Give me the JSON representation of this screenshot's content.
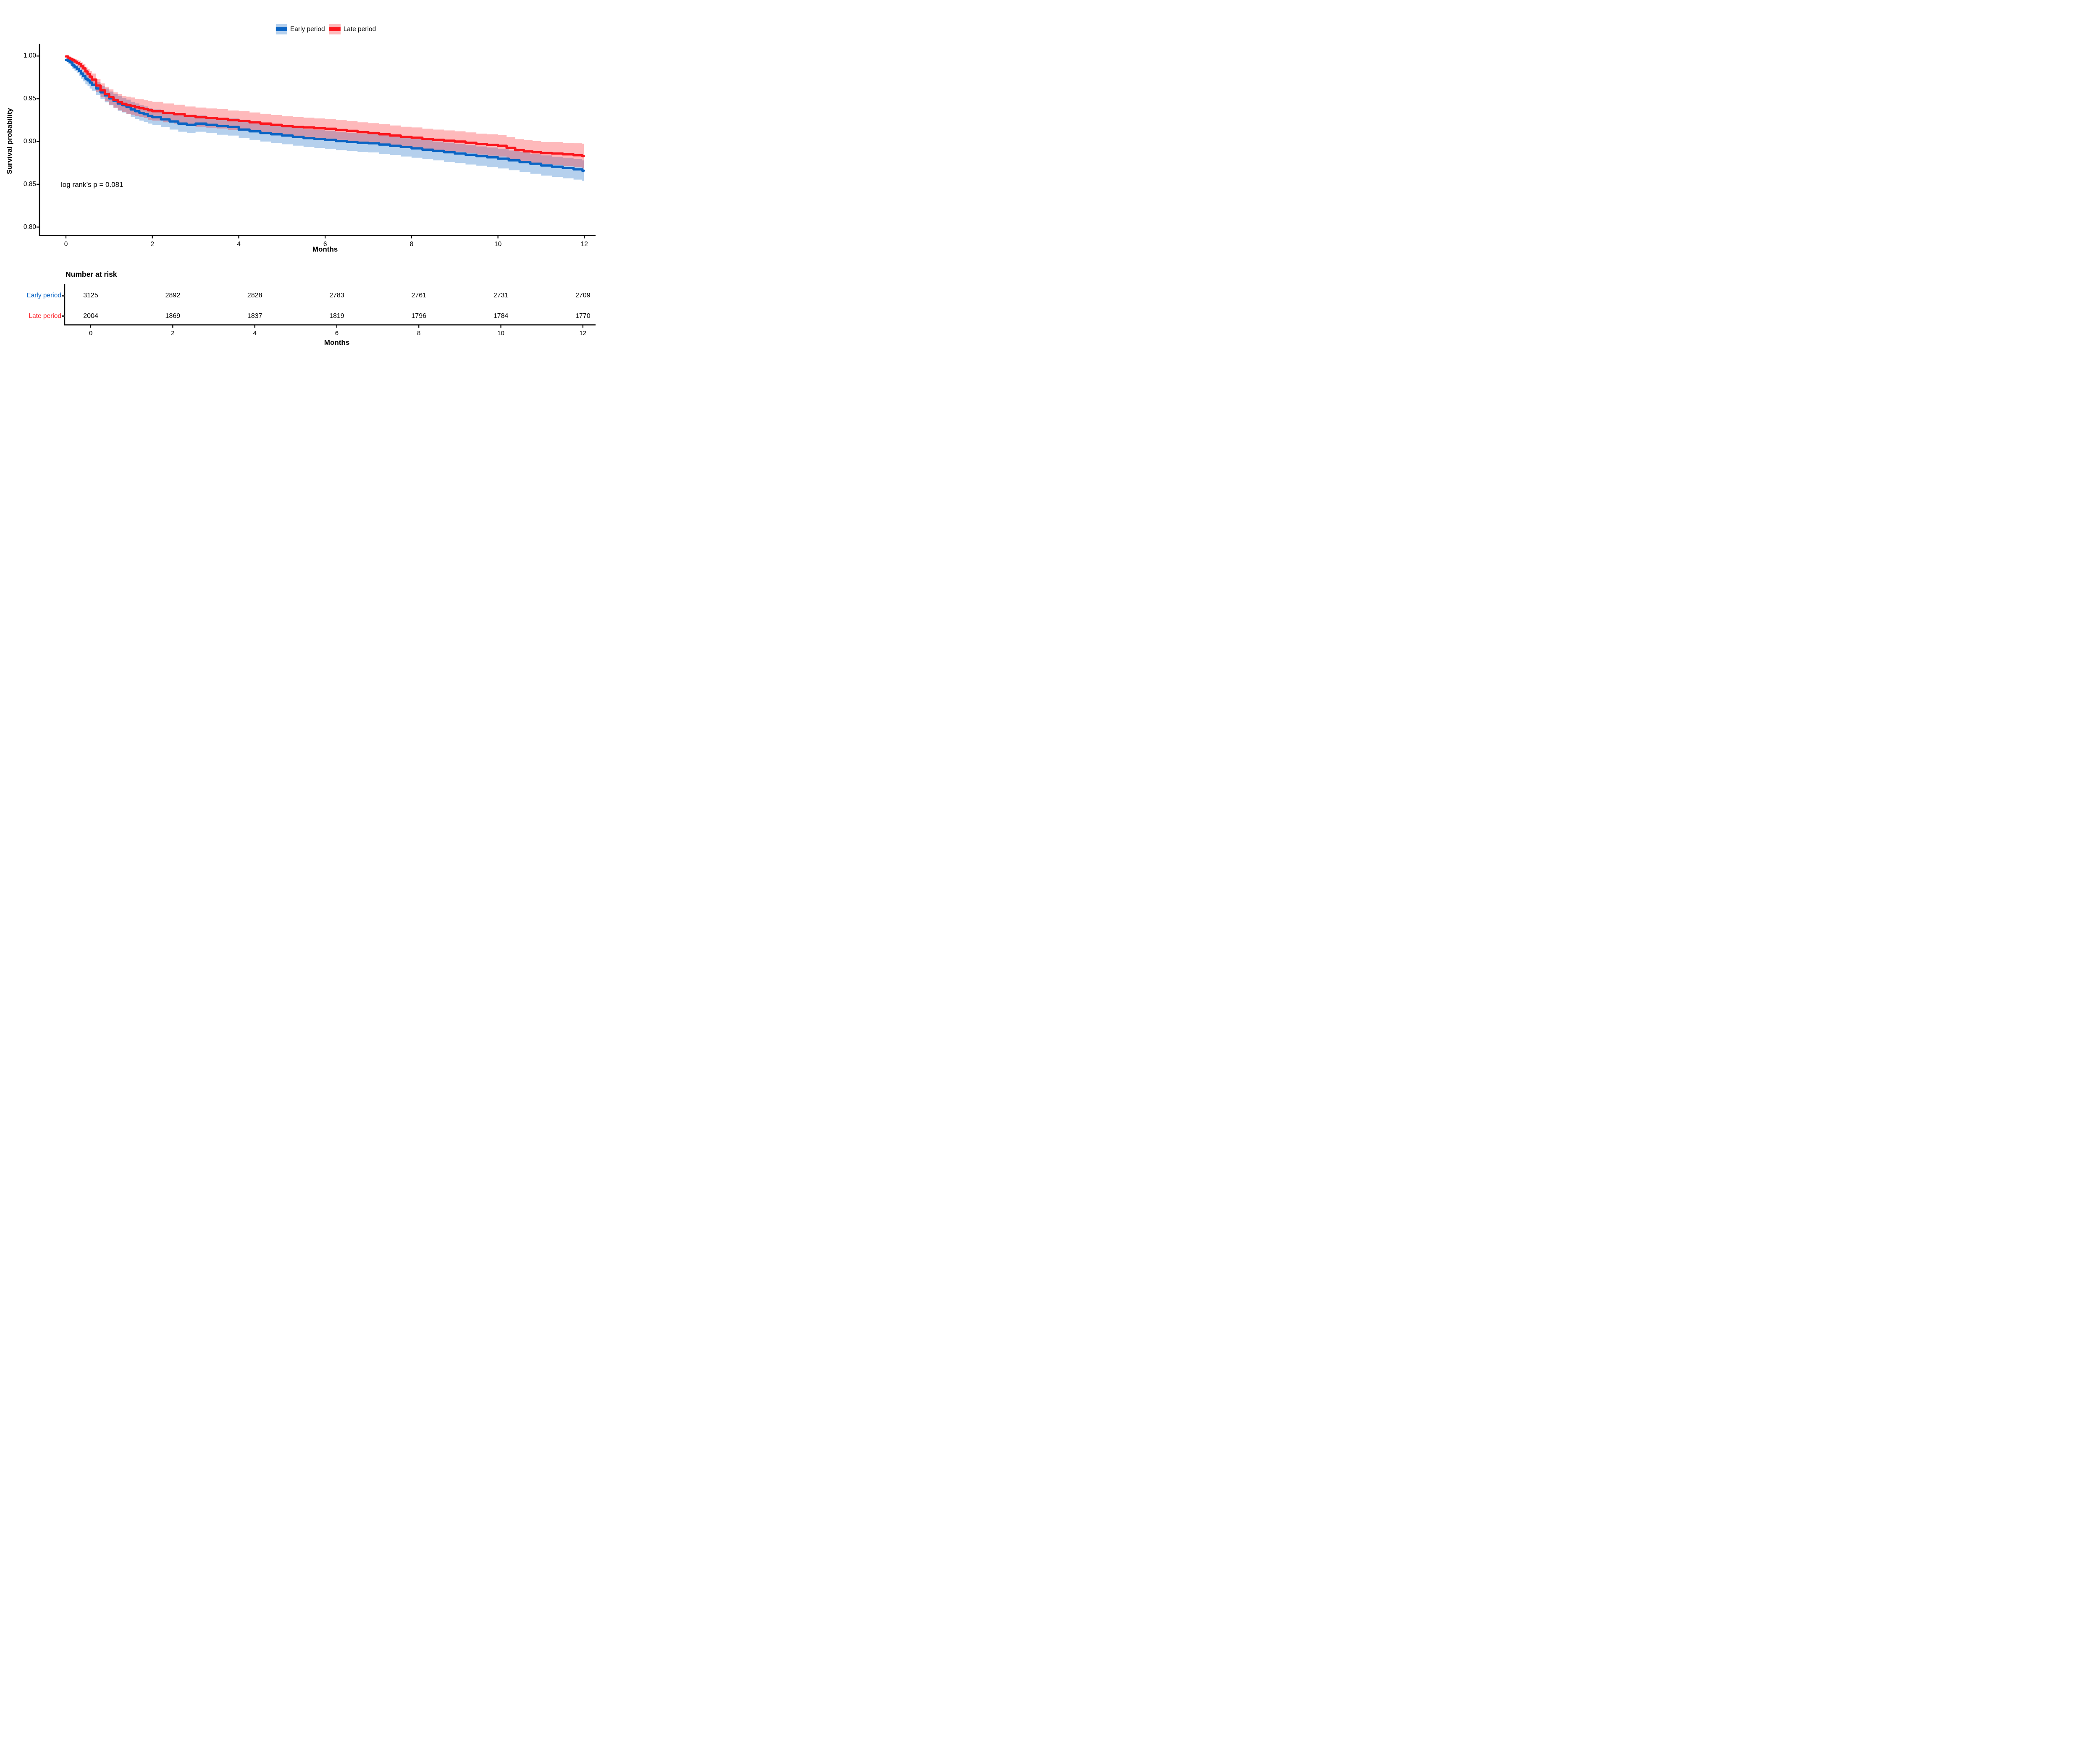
{
  "chart_data": {
    "type": "line",
    "subtype": "kaplan-meier-survival",
    "title": "",
    "xlabel": "Months",
    "ylabel": "Survival probability",
    "annotation": "log rank’s p = 0.081",
    "x_ticks": [
      0,
      2,
      4,
      6,
      8,
      10,
      12
    ],
    "y_ticks": [
      "1.00",
      "0.95",
      "0.90",
      "0.85",
      "0.80"
    ],
    "y_tick_values": [
      1.0,
      0.95,
      0.9,
      0.85,
      0.8
    ],
    "xlim": [
      0,
      12.2
    ],
    "ylim": [
      0.8,
      1.0
    ],
    "grid": "off",
    "legend_position": "top-center",
    "legend": [
      {
        "label": "Early period",
        "color": "#0a64c4",
        "band_color": "#b5d2ec"
      },
      {
        "label": "Late period",
        "color": "#fb161d",
        "band_color": "#feb9bb"
      }
    ],
    "band_opacity": 0.3,
    "series": [
      {
        "name": "Early period",
        "color": "#0a64c4",
        "points": [
          [
            0,
            0.9955,
            0.002
          ],
          [
            0.05,
            0.994,
            0.003
          ],
          [
            0.1,
            0.9925,
            0.0035
          ],
          [
            0.15,
            0.989,
            0.004
          ],
          [
            0.2,
            0.987,
            0.0045
          ],
          [
            0.25,
            0.985,
            0.005
          ],
          [
            0.3,
            0.9825,
            0.0055
          ],
          [
            0.35,
            0.9795,
            0.006
          ],
          [
            0.4,
            0.9765,
            0.006
          ],
          [
            0.45,
            0.9735,
            0.0065
          ],
          [
            0.5,
            0.9715,
            0.0065
          ],
          [
            0.55,
            0.969,
            0.007
          ],
          [
            0.6,
            0.9665,
            0.007
          ],
          [
            0.7,
            0.962,
            0.0075
          ],
          [
            0.8,
            0.9575,
            0.0075
          ],
          [
            0.9,
            0.954,
            0.008
          ],
          [
            1.0,
            0.9505,
            0.008
          ],
          [
            1.1,
            0.9475,
            0.008
          ],
          [
            1.2,
            0.9445,
            0.0085
          ],
          [
            1.3,
            0.9425,
            0.0085
          ],
          [
            1.4,
            0.9405,
            0.0085
          ],
          [
            1.5,
            0.9375,
            0.009
          ],
          [
            1.6,
            0.9355,
            0.009
          ],
          [
            1.7,
            0.9335,
            0.009
          ],
          [
            1.8,
            0.932,
            0.009
          ],
          [
            1.9,
            0.93,
            0.009
          ],
          [
            2.0,
            0.9285,
            0.009
          ],
          [
            2.2,
            0.926,
            0.009
          ],
          [
            2.4,
            0.9235,
            0.0095
          ],
          [
            2.6,
            0.921,
            0.0095
          ],
          [
            2.8,
            0.9195,
            0.0095
          ],
          [
            3.0,
            0.921,
            0.0095
          ],
          [
            3.25,
            0.9195,
            0.0095
          ],
          [
            3.5,
            0.918,
            0.01
          ],
          [
            3.75,
            0.917,
            0.01
          ],
          [
            4.0,
            0.914,
            0.01
          ],
          [
            4.25,
            0.912,
            0.01
          ],
          [
            4.5,
            0.91,
            0.01
          ],
          [
            4.75,
            0.9085,
            0.0102
          ],
          [
            5.0,
            0.907,
            0.0102
          ],
          [
            5.25,
            0.9055,
            0.0103
          ],
          [
            5.5,
            0.904,
            0.0103
          ],
          [
            5.75,
            0.903,
            0.0105
          ],
          [
            6.0,
            0.902,
            0.0105
          ],
          [
            6.25,
            0.9005,
            0.0105
          ],
          [
            6.5,
            0.8995,
            0.0105
          ],
          [
            6.75,
            0.8985,
            0.0107
          ],
          [
            7.0,
            0.898,
            0.0107
          ],
          [
            7.25,
            0.8965,
            0.0108
          ],
          [
            7.5,
            0.895,
            0.0108
          ],
          [
            7.75,
            0.8935,
            0.011
          ],
          [
            8.0,
            0.892,
            0.011
          ],
          [
            8.25,
            0.8905,
            0.011
          ],
          [
            8.5,
            0.889,
            0.011
          ],
          [
            8.75,
            0.8875,
            0.0112
          ],
          [
            9.0,
            0.886,
            0.0112
          ],
          [
            9.25,
            0.8845,
            0.0113
          ],
          [
            9.5,
            0.883,
            0.0113
          ],
          [
            9.75,
            0.8815,
            0.0115
          ],
          [
            10.0,
            0.88,
            0.0115
          ],
          [
            10.25,
            0.878,
            0.0115
          ],
          [
            10.5,
            0.876,
            0.0117
          ],
          [
            10.75,
            0.874,
            0.0117
          ],
          [
            11.0,
            0.872,
            0.0118
          ],
          [
            11.25,
            0.8705,
            0.0118
          ],
          [
            11.5,
            0.869,
            0.012
          ],
          [
            11.75,
            0.8675,
            0.012
          ],
          [
            11.95,
            0.866,
            0.012
          ]
        ]
      },
      {
        "name": "Late period",
        "color": "#fb161d",
        "points": [
          [
            0,
            0.9995,
            0.001
          ],
          [
            0.05,
            0.998,
            0.0015
          ],
          [
            0.1,
            0.9965,
            0.002
          ],
          [
            0.15,
            0.995,
            0.0025
          ],
          [
            0.2,
            0.9935,
            0.003
          ],
          [
            0.25,
            0.992,
            0.0035
          ],
          [
            0.3,
            0.9905,
            0.004
          ],
          [
            0.35,
            0.988,
            0.0045
          ],
          [
            0.4,
            0.9855,
            0.005
          ],
          [
            0.45,
            0.982,
            0.0055
          ],
          [
            0.5,
            0.979,
            0.006
          ],
          [
            0.55,
            0.976,
            0.0065
          ],
          [
            0.6,
            0.9725,
            0.007
          ],
          [
            0.7,
            0.9655,
            0.0075
          ],
          [
            0.8,
            0.96,
            0.008
          ],
          [
            0.9,
            0.9555,
            0.0085
          ],
          [
            1.0,
            0.952,
            0.009
          ],
          [
            1.1,
            0.9485,
            0.009
          ],
          [
            1.2,
            0.946,
            0.0095
          ],
          [
            1.3,
            0.944,
            0.0095
          ],
          [
            1.4,
            0.9425,
            0.01
          ],
          [
            1.5,
            0.9415,
            0.01
          ],
          [
            1.6,
            0.94,
            0.01
          ],
          [
            1.7,
            0.939,
            0.0105
          ],
          [
            1.8,
            0.938,
            0.0105
          ],
          [
            1.9,
            0.9365,
            0.011
          ],
          [
            2.0,
            0.9355,
            0.011
          ],
          [
            2.25,
            0.9335,
            0.011
          ],
          [
            2.5,
            0.932,
            0.011
          ],
          [
            2.75,
            0.93,
            0.011
          ],
          [
            3.0,
            0.9285,
            0.0112
          ],
          [
            3.25,
            0.9275,
            0.0112
          ],
          [
            3.5,
            0.9265,
            0.0113
          ],
          [
            3.75,
            0.925,
            0.0113
          ],
          [
            4.0,
            0.924,
            0.0115
          ],
          [
            4.25,
            0.9225,
            0.0115
          ],
          [
            4.5,
            0.921,
            0.0115
          ],
          [
            4.75,
            0.9195,
            0.0115
          ],
          [
            5.0,
            0.918,
            0.0115
          ],
          [
            5.25,
            0.917,
            0.0115
          ],
          [
            5.5,
            0.9165,
            0.0115
          ],
          [
            5.75,
            0.9155,
            0.0115
          ],
          [
            6.0,
            0.915,
            0.0115
          ],
          [
            6.25,
            0.9135,
            0.0115
          ],
          [
            6.5,
            0.9125,
            0.0115
          ],
          [
            6.75,
            0.911,
            0.0115
          ],
          [
            7.0,
            0.91,
            0.0115
          ],
          [
            7.25,
            0.9085,
            0.0118
          ],
          [
            7.5,
            0.907,
            0.0118
          ],
          [
            7.75,
            0.9055,
            0.0118
          ],
          [
            8.0,
            0.9045,
            0.012
          ],
          [
            8.25,
            0.903,
            0.012
          ],
          [
            8.5,
            0.902,
            0.012
          ],
          [
            8.75,
            0.901,
            0.012
          ],
          [
            9.0,
            0.9,
            0.012
          ],
          [
            9.25,
            0.8985,
            0.0122
          ],
          [
            9.5,
            0.897,
            0.0122
          ],
          [
            9.75,
            0.896,
            0.0125
          ],
          [
            10.0,
            0.895,
            0.0125
          ],
          [
            10.2,
            0.8925,
            0.0128
          ],
          [
            10.4,
            0.89,
            0.0128
          ],
          [
            10.6,
            0.8885,
            0.013
          ],
          [
            10.8,
            0.8875,
            0.013
          ],
          [
            11.0,
            0.8865,
            0.013
          ],
          [
            11.25,
            0.886,
            0.0135
          ],
          [
            11.5,
            0.885,
            0.0135
          ],
          [
            11.75,
            0.884,
            0.014
          ],
          [
            11.95,
            0.883,
            0.0145
          ]
        ]
      }
    ],
    "risk_table": {
      "title": "Number at risk",
      "xlabel": "Months",
      "x_ticks": [
        0,
        2,
        4,
        6,
        8,
        10,
        12
      ],
      "rows": [
        {
          "label": "Early period",
          "color": "#0a64c4",
          "values": [
            3125,
            2892,
            2828,
            2783,
            2761,
            2731,
            2709
          ]
        },
        {
          "label": "Late period",
          "color": "#fb161d",
          "values": [
            2004,
            1869,
            1837,
            1819,
            1796,
            1784,
            1770
          ]
        }
      ]
    }
  }
}
